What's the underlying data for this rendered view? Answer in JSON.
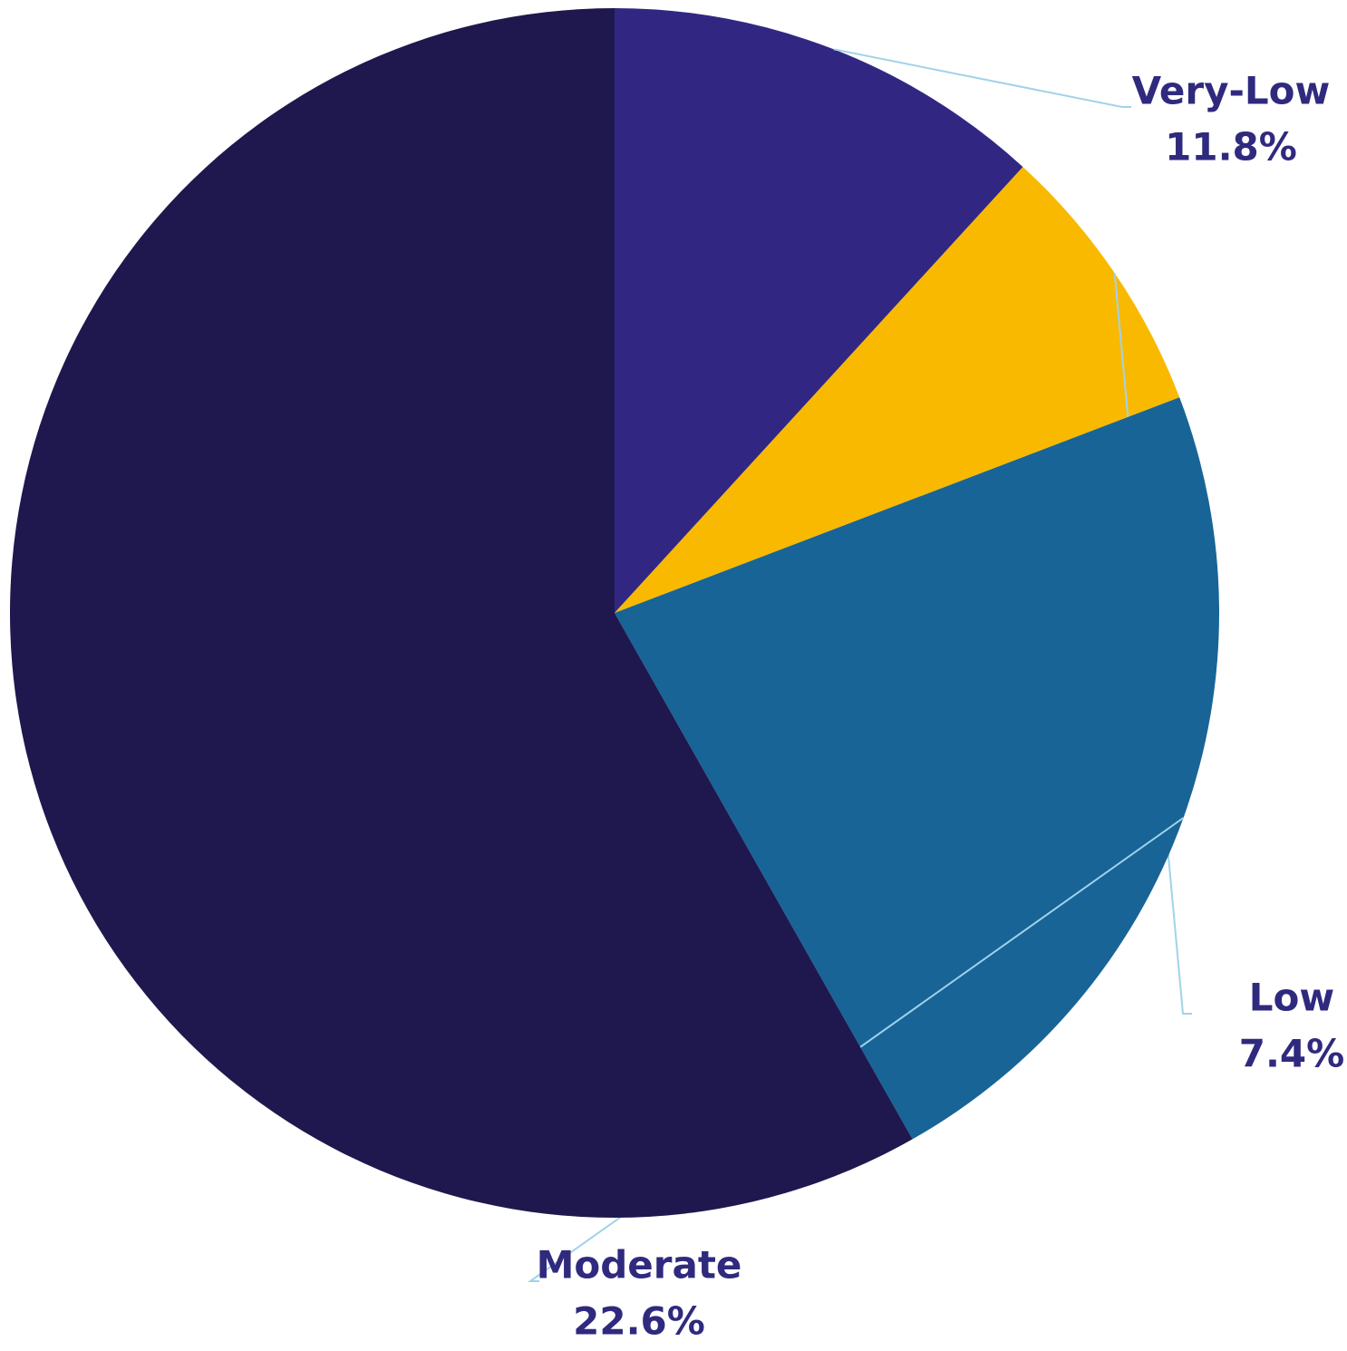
{
  "chart_data": {
    "type": "pie",
    "categories": [
      "Very-Low",
      "Low",
      "Moderate",
      null
    ],
    "values": [
      11.8,
      7.4,
      22.6,
      58.2
    ],
    "value_labels": [
      "11.8%",
      "7.4%",
      "22.6%",
      null
    ],
    "colors": [
      "#312783",
      "#f9b900",
      "#186497",
      "#1f184e"
    ]
  }
}
